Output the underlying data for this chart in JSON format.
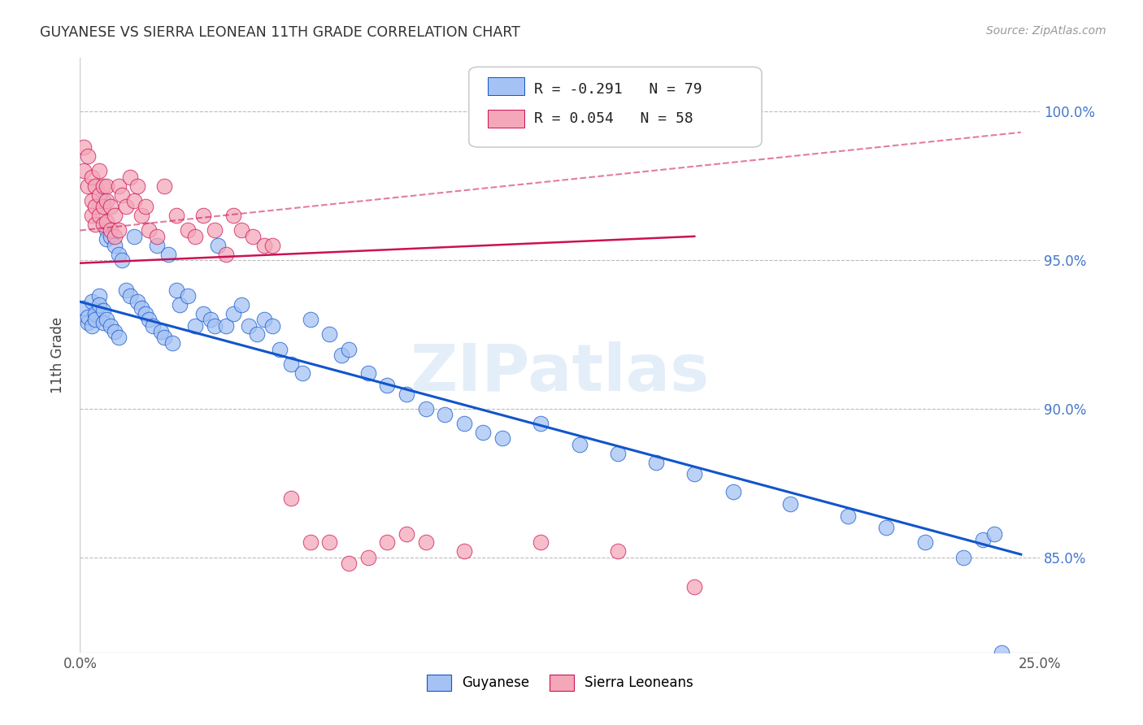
{
  "title": "GUYANESE VS SIERRA LEONEAN 11TH GRADE CORRELATION CHART",
  "source": "Source: ZipAtlas.com",
  "ylabel": "11th Grade",
  "x_range": [
    0.0,
    0.25
  ],
  "y_range": [
    0.818,
    1.018
  ],
  "legend_r1": "R = -0.291",
  "legend_n1": "N = 79",
  "legend_r2": "R = 0.054",
  "legend_n2": "N = 58",
  "watermark": "ZIPatlas",
  "blue_color": "#a4c2f4",
  "pink_color": "#f4a7b9",
  "line_blue": "#1155cc",
  "line_pink": "#cc1155",
  "blue_scatter_x": [
    0.001,
    0.002,
    0.002,
    0.003,
    0.003,
    0.004,
    0.004,
    0.005,
    0.005,
    0.006,
    0.006,
    0.006,
    0.007,
    0.007,
    0.007,
    0.008,
    0.008,
    0.009,
    0.009,
    0.01,
    0.01,
    0.011,
    0.012,
    0.013,
    0.014,
    0.015,
    0.016,
    0.017,
    0.018,
    0.019,
    0.02,
    0.021,
    0.022,
    0.023,
    0.024,
    0.025,
    0.026,
    0.028,
    0.03,
    0.032,
    0.034,
    0.035,
    0.036,
    0.038,
    0.04,
    0.042,
    0.044,
    0.046,
    0.048,
    0.05,
    0.052,
    0.055,
    0.058,
    0.06,
    0.065,
    0.068,
    0.07,
    0.075,
    0.08,
    0.085,
    0.09,
    0.095,
    0.1,
    0.105,
    0.11,
    0.12,
    0.13,
    0.14,
    0.15,
    0.16,
    0.17,
    0.185,
    0.2,
    0.21,
    0.22,
    0.23,
    0.235,
    0.238,
    0.24
  ],
  "blue_scatter_y": [
    0.934,
    0.929,
    0.931,
    0.936,
    0.928,
    0.932,
    0.93,
    0.938,
    0.935,
    0.97,
    0.933,
    0.929,
    0.96,
    0.957,
    0.93,
    0.958,
    0.928,
    0.955,
    0.926,
    0.952,
    0.924,
    0.95,
    0.94,
    0.938,
    0.958,
    0.936,
    0.934,
    0.932,
    0.93,
    0.928,
    0.955,
    0.926,
    0.924,
    0.952,
    0.922,
    0.94,
    0.935,
    0.938,
    0.928,
    0.932,
    0.93,
    0.928,
    0.955,
    0.928,
    0.932,
    0.935,
    0.928,
    0.925,
    0.93,
    0.928,
    0.92,
    0.915,
    0.912,
    0.93,
    0.925,
    0.918,
    0.92,
    0.912,
    0.908,
    0.905,
    0.9,
    0.898,
    0.895,
    0.892,
    0.89,
    0.895,
    0.888,
    0.885,
    0.882,
    0.878,
    0.872,
    0.868,
    0.864,
    0.86,
    0.855,
    0.85,
    0.856,
    0.858,
    0.818
  ],
  "pink_scatter_x": [
    0.001,
    0.001,
    0.002,
    0.002,
    0.003,
    0.003,
    0.003,
    0.004,
    0.004,
    0.004,
    0.005,
    0.005,
    0.005,
    0.006,
    0.006,
    0.006,
    0.007,
    0.007,
    0.007,
    0.008,
    0.008,
    0.009,
    0.009,
    0.01,
    0.01,
    0.011,
    0.012,
    0.013,
    0.014,
    0.015,
    0.016,
    0.017,
    0.018,
    0.02,
    0.022,
    0.025,
    0.028,
    0.03,
    0.032,
    0.035,
    0.038,
    0.04,
    0.042,
    0.045,
    0.048,
    0.05,
    0.055,
    0.06,
    0.065,
    0.07,
    0.075,
    0.08,
    0.085,
    0.09,
    0.1,
    0.12,
    0.14,
    0.16
  ],
  "pink_scatter_y": [
    0.988,
    0.98,
    0.985,
    0.975,
    0.978,
    0.97,
    0.965,
    0.975,
    0.968,
    0.962,
    0.98,
    0.972,
    0.965,
    0.975,
    0.968,
    0.962,
    0.975,
    0.97,
    0.963,
    0.968,
    0.96,
    0.965,
    0.958,
    0.975,
    0.96,
    0.972,
    0.968,
    0.978,
    0.97,
    0.975,
    0.965,
    0.968,
    0.96,
    0.958,
    0.975,
    0.965,
    0.96,
    0.958,
    0.965,
    0.96,
    0.952,
    0.965,
    0.96,
    0.958,
    0.955,
    0.955,
    0.87,
    0.855,
    0.855,
    0.848,
    0.85,
    0.855,
    0.858,
    0.855,
    0.852,
    0.855,
    0.852,
    0.84
  ],
  "blue_line_x": [
    0.0,
    0.245
  ],
  "blue_line_y": [
    0.936,
    0.851
  ],
  "pink_line_x": [
    0.0,
    0.16
  ],
  "pink_line_y": [
    0.949,
    0.958
  ],
  "pink_dash_line_x": [
    0.0,
    0.245
  ],
  "pink_dash_line_y": [
    0.96,
    0.993
  ]
}
